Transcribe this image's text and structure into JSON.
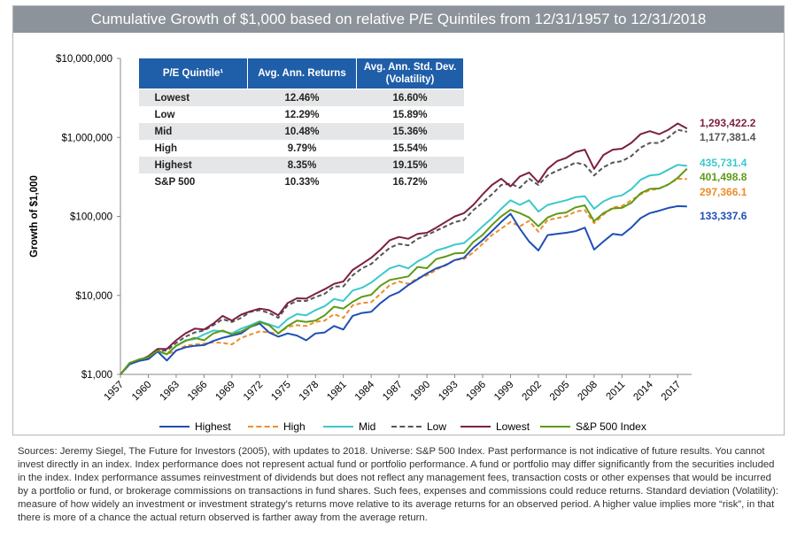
{
  "chart_data": {
    "type": "line",
    "title": "Cumulative Growth of $1,000 based on relative P/E Quintiles from 12/31/1957 to 12/31/2018",
    "ylabel": "Growth of $1,000",
    "xlabel": "",
    "yscale": "log",
    "ylim": [
      1000,
      10000000
    ],
    "xlim": [
      1957,
      2018.5
    ],
    "y_ticks": [
      {
        "value": 1000,
        "label": "$1,000"
      },
      {
        "value": 10000,
        "label": "$10,000"
      },
      {
        "value": 100000,
        "label": "$100,000"
      },
      {
        "value": 1000000,
        "label": "$1,000,000"
      },
      {
        "value": 10000000,
        "label": "$10,000,000"
      }
    ],
    "x_ticks": [
      "1957",
      "1960",
      "1963",
      "1966",
      "1969",
      "1972",
      "1975",
      "1978",
      "1981",
      "1984",
      "1987",
      "1990",
      "1993",
      "1996",
      "1999",
      "2002",
      "2005",
      "2008",
      "2011",
      "2014",
      "2017"
    ],
    "x_years": [
      1957,
      1958,
      1959,
      1960,
      1961,
      1962,
      1963,
      1964,
      1965,
      1966,
      1967,
      1968,
      1969,
      1970,
      1971,
      1972,
      1973,
      1974,
      1975,
      1976,
      1977,
      1978,
      1979,
      1980,
      1981,
      1982,
      1983,
      1984,
      1985,
      1986,
      1987,
      1988,
      1989,
      1990,
      1991,
      1992,
      1993,
      1994,
      1995,
      1996,
      1997,
      1998,
      1999,
      2000,
      2001,
      2002,
      2003,
      2004,
      2005,
      2006,
      2007,
      2008,
      2009,
      2010,
      2011,
      2012,
      2013,
      2014,
      2015,
      2016,
      2017,
      2018
    ],
    "series": [
      {
        "key": "highest",
        "name": "Highest",
        "color": "#1f4fb5",
        "dash": "",
        "end_label": "133,337.6",
        "values": [
          1000,
          1350,
          1480,
          1560,
          1950,
          1500,
          2000,
          2200,
          2300,
          2350,
          2650,
          2900,
          3100,
          3300,
          4000,
          4400,
          3400,
          3000,
          3300,
          3100,
          2700,
          3300,
          3400,
          4100,
          3700,
          5500,
          6000,
          6200,
          8000,
          9800,
          11000,
          13500,
          16000,
          19000,
          22000,
          24000,
          28000,
          30000,
          40000,
          50000,
          65000,
          85000,
          108000,
          70000,
          48000,
          37000,
          58000,
          60000,
          62000,
          65000,
          72000,
          38000,
          48000,
          60000,
          58000,
          72000,
          95000,
          110000,
          118000,
          128000,
          135000,
          133337.6
        ]
      },
      {
        "key": "high",
        "name": "High",
        "color": "#f08c2a",
        "dash": "5,3",
        "end_label": "297,366.1",
        "values": [
          1000,
          1350,
          1500,
          1600,
          1950,
          1800,
          2000,
          2300,
          2400,
          2450,
          2550,
          2500,
          2400,
          2900,
          3200,
          3500,
          3400,
          3300,
          4000,
          4200,
          4100,
          4600,
          4800,
          5800,
          5200,
          7500,
          8000,
          8200,
          10500,
          13500,
          15000,
          14000,
          16500,
          18000,
          21000,
          24500,
          28000,
          29000,
          35000,
          45000,
          58000,
          70000,
          85000,
          75000,
          88000,
          64000,
          90000,
          95000,
          100000,
          115000,
          120000,
          82000,
          105000,
          130000,
          135000,
          160000,
          190000,
          215000,
          225000,
          255000,
          300000,
          297366.1
        ]
      },
      {
        "key": "mid",
        "name": "Mid",
        "color": "#3cc8cc",
        "dash": "",
        "end_label": "435,731.4",
        "values": [
          1000,
          1400,
          1500,
          1650,
          1950,
          1800,
          2300,
          2700,
          2800,
          3200,
          3600,
          3500,
          3300,
          3800,
          4200,
          4700,
          4300,
          3900,
          5000,
          5800,
          5600,
          6500,
          7300,
          9000,
          8500,
          11500,
          12500,
          14500,
          18000,
          22000,
          24000,
          22000,
          27000,
          31000,
          37000,
          40000,
          44000,
          46000,
          58000,
          75000,
          95000,
          125000,
          160000,
          140000,
          160000,
          115000,
          140000,
          150000,
          160000,
          175000,
          180000,
          125000,
          155000,
          175000,
          185000,
          220000,
          290000,
          330000,
          340000,
          390000,
          450000,
          435731.4
        ]
      },
      {
        "key": "low",
        "name": "Low",
        "color": "#555555",
        "dash": "5,3",
        "end_label": "1,177,381.4",
        "values": [
          1000,
          1350,
          1500,
          1650,
          2000,
          2000,
          2500,
          3000,
          3400,
          3600,
          4200,
          5000,
          4600,
          5200,
          6200,
          6500,
          6000,
          5200,
          7500,
          8500,
          8500,
          9500,
          10500,
          13000,
          13000,
          18000,
          22000,
          25000,
          32000,
          40000,
          45000,
          43000,
          52000,
          58000,
          66000,
          75000,
          85000,
          90000,
          120000,
          150000,
          190000,
          250000,
          260000,
          230000,
          300000,
          250000,
          330000,
          380000,
          420000,
          480000,
          450000,
          330000,
          420000,
          480000,
          500000,
          580000,
          740000,
          850000,
          850000,
          1000000,
          1250000,
          1177381.4
        ]
      },
      {
        "key": "lowest",
        "name": "Lowest",
        "color": "#7d1f43",
        "dash": "",
        "end_label": "1,293,422.2",
        "values": [
          1000,
          1400,
          1500,
          1700,
          2100,
          2100,
          2700,
          3300,
          3800,
          3700,
          4400,
          5500,
          4800,
          5700,
          6300,
          6800,
          6500,
          5600,
          8000,
          9200,
          9100,
          10500,
          12000,
          14000,
          15000,
          21000,
          25000,
          30000,
          38000,
          50000,
          55000,
          52000,
          60000,
          62000,
          72000,
          85000,
          100000,
          110000,
          140000,
          190000,
          250000,
          300000,
          240000,
          320000,
          360000,
          270000,
          400000,
          500000,
          550000,
          650000,
          700000,
          400000,
          600000,
          700000,
          720000,
          850000,
          1100000,
          1200000,
          1100000,
          1250000,
          1500000,
          1293422.2
        ]
      },
      {
        "key": "sp500",
        "name": "S&P 500 Index",
        "color": "#5e9a17",
        "dash": "",
        "end_label": "401,498.8",
        "values": [
          1000,
          1400,
          1550,
          1650,
          2000,
          1800,
          2300,
          2650,
          2900,
          2700,
          3300,
          3600,
          3200,
          3500,
          4000,
          4600,
          4200,
          3300,
          4100,
          4800,
          4600,
          4800,
          5600,
          7200,
          6800,
          8300,
          9600,
          10200,
          13300,
          15700,
          16500,
          17400,
          22900,
          22100,
          28800,
          31000,
          34100,
          34500,
          47400,
          58300,
          77800,
          100000,
          121000,
          110000,
          97000,
          75000,
          97000,
          108000,
          112000,
          130000,
          138000,
          87000,
          110000,
          126000,
          128000,
          148000,
          196000,
          223000,
          226000,
          253000,
          308000,
          401498.8
        ]
      }
    ]
  },
  "table": {
    "headers": [
      "P/E Quintile¹",
      "Avg. Ann. Returns",
      "Avg. Ann. Std. Dev.",
      "(Volatility)"
    ],
    "rows": [
      {
        "label": "Lowest",
        "ret": "12.46%",
        "std": "16.60%"
      },
      {
        "label": "Low",
        "ret": "12.29%",
        "std": "15.89%"
      },
      {
        "label": "Mid",
        "ret": "10.48%",
        "std": "15.36%"
      },
      {
        "label": "High",
        "ret": "9.79%",
        "std": "15.54%"
      },
      {
        "label": "Highest",
        "ret": "8.35%",
        "std": "19.15%"
      },
      {
        "label": "S&P 500",
        "ret": "10.33%",
        "std": "16.72%"
      }
    ]
  },
  "footnote": "Sources: Jeremy Siegel, The Future for Investors (2005), with updates to 2018. Universe: S&P 500 Index. Past performance is not indicative of future results. You cannot invest directly in an index. Index performance does not represent actual fund or portfolio performance. A fund or portfolio may differ significantly from the securities included in the index. Index performance assumes reinvestment of dividends but does not reflect any management fees, transaction costs or other expenses that would be incurred by a portfolio or fund, or brokerage commissions on transactions in fund shares. Such fees, expenses and commissions could reduce returns. Standard deviation (Volatility): measure of how widely an investment or investment strategy's returns move relative to its average returns for an observed period. A higher value implies more “risk”, in that there is more of a chance the actual return observed is farther away from the average return."
}
